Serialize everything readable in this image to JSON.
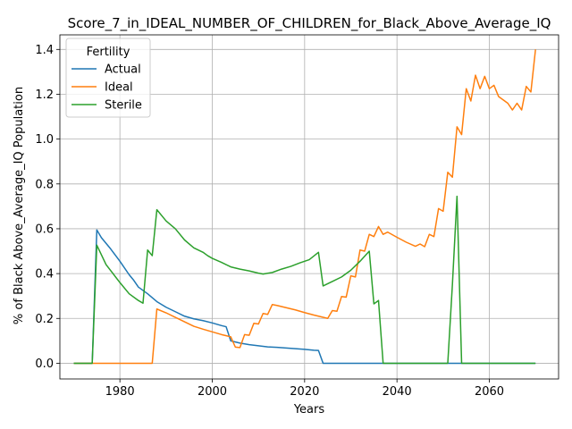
{
  "chart_data": {
    "type": "line",
    "title": "Score_7_in_IDEAL_NUMBER_OF_CHILDREN_for_Black_Above_Average_IQ",
    "xlabel": "Years",
    "ylabel": "% of Black Above_Average_IQ Population",
    "xlim": [
      1967,
      2075
    ],
    "ylim": [
      -0.07,
      1.465
    ],
    "xticks": [
      1980,
      2000,
      2020,
      2040,
      2060
    ],
    "yticks": [
      0.0,
      0.2,
      0.4,
      0.6,
      0.8,
      1.0,
      1.2,
      1.4
    ],
    "grid": true,
    "legend": {
      "title": "Fertility",
      "placement": "top-left",
      "entries": [
        "Actual",
        "Ideal",
        "Sterile"
      ]
    },
    "series": [
      {
        "name": "Actual",
        "color": "#1f77b4",
        "points": [
          [
            1970,
            0.0
          ],
          [
            1974,
            0.0
          ],
          [
            1975,
            0.595
          ],
          [
            1976,
            0.56
          ],
          [
            1978,
            0.51
          ],
          [
            1980,
            0.455
          ],
          [
            1982,
            0.395
          ],
          [
            1983,
            0.37
          ],
          [
            1984,
            0.34
          ],
          [
            1986,
            0.31
          ],
          [
            1988,
            0.275
          ],
          [
            1990,
            0.25
          ],
          [
            1992,
            0.23
          ],
          [
            1994,
            0.21
          ],
          [
            1996,
            0.198
          ],
          [
            1998,
            0.19
          ],
          [
            2000,
            0.18
          ],
          [
            2002,
            0.168
          ],
          [
            2003,
            0.163
          ],
          [
            2004,
            0.1
          ],
          [
            2006,
            0.09
          ],
          [
            2008,
            0.083
          ],
          [
            2010,
            0.078
          ],
          [
            2012,
            0.073
          ],
          [
            2014,
            0.071
          ],
          [
            2016,
            0.068
          ],
          [
            2018,
            0.065
          ],
          [
            2020,
            0.062
          ],
          [
            2022,
            0.058
          ],
          [
            2023,
            0.057
          ],
          [
            2024,
            0.0
          ],
          [
            2070,
            0.0
          ]
        ]
      },
      {
        "name": "Ideal",
        "color": "#ff7f0e",
        "points": [
          [
            1970,
            0.0
          ],
          [
            1987,
            0.0
          ],
          [
            1988,
            0.242
          ],
          [
            1990,
            0.225
          ],
          [
            1992,
            0.205
          ],
          [
            1994,
            0.185
          ],
          [
            1996,
            0.165
          ],
          [
            1998,
            0.152
          ],
          [
            2000,
            0.14
          ],
          [
            2002,
            0.128
          ],
          [
            2004,
            0.118
          ],
          [
            2005,
            0.072
          ],
          [
            2006,
            0.07
          ],
          [
            2007,
            0.128
          ],
          [
            2008,
            0.125
          ],
          [
            2009,
            0.178
          ],
          [
            2010,
            0.175
          ],
          [
            2011,
            0.222
          ],
          [
            2012,
            0.218
          ],
          [
            2013,
            0.262
          ],
          [
            2014,
            0.258
          ],
          [
            2016,
            0.248
          ],
          [
            2018,
            0.238
          ],
          [
            2020,
            0.226
          ],
          [
            2022,
            0.215
          ],
          [
            2024,
            0.205
          ],
          [
            2025,
            0.2
          ],
          [
            2026,
            0.235
          ],
          [
            2027,
            0.232
          ],
          [
            2028,
            0.298
          ],
          [
            2029,
            0.295
          ],
          [
            2030,
            0.39
          ],
          [
            2031,
            0.385
          ],
          [
            2032,
            0.505
          ],
          [
            2033,
            0.5
          ],
          [
            2034,
            0.575
          ],
          [
            2035,
            0.565
          ],
          [
            2036,
            0.61
          ],
          [
            2037,
            0.575
          ],
          [
            2038,
            0.585
          ],
          [
            2040,
            0.562
          ],
          [
            2042,
            0.54
          ],
          [
            2044,
            0.522
          ],
          [
            2045,
            0.532
          ],
          [
            2046,
            0.52
          ],
          [
            2047,
            0.575
          ],
          [
            2048,
            0.565
          ],
          [
            2049,
            0.69
          ],
          [
            2050,
            0.678
          ],
          [
            2051,
            0.852
          ],
          [
            2052,
            0.83
          ],
          [
            2053,
            1.055
          ],
          [
            2054,
            1.02
          ],
          [
            2055,
            1.225
          ],
          [
            2056,
            1.17
          ],
          [
            2057,
            1.285
          ],
          [
            2058,
            1.225
          ],
          [
            2059,
            1.28
          ],
          [
            2060,
            1.225
          ],
          [
            2061,
            1.24
          ],
          [
            2062,
            1.19
          ],
          [
            2064,
            1.16
          ],
          [
            2065,
            1.13
          ],
          [
            2066,
            1.16
          ],
          [
            2067,
            1.13
          ],
          [
            2068,
            1.235
          ],
          [
            2069,
            1.21
          ],
          [
            2070,
            1.4
          ]
        ]
      },
      {
        "name": "Sterile",
        "color": "#2ca02c",
        "points": [
          [
            1970,
            0.0
          ],
          [
            1974,
            0.0
          ],
          [
            1975,
            0.527
          ],
          [
            1977,
            0.44
          ],
          [
            1980,
            0.36
          ],
          [
            1982,
            0.31
          ],
          [
            1984,
            0.28
          ],
          [
            1985,
            0.268
          ],
          [
            1986,
            0.505
          ],
          [
            1987,
            0.48
          ],
          [
            1988,
            0.685
          ],
          [
            1990,
            0.635
          ],
          [
            1992,
            0.6
          ],
          [
            1994,
            0.55
          ],
          [
            1996,
            0.515
          ],
          [
            1998,
            0.495
          ],
          [
            1999,
            0.48
          ],
          [
            2000,
            0.468
          ],
          [
            2002,
            0.45
          ],
          [
            2004,
            0.43
          ],
          [
            2006,
            0.42
          ],
          [
            2008,
            0.412
          ],
          [
            2010,
            0.402
          ],
          [
            2011,
            0.398
          ],
          [
            2013,
            0.405
          ],
          [
            2015,
            0.42
          ],
          [
            2017,
            0.432
          ],
          [
            2019,
            0.448
          ],
          [
            2021,
            0.462
          ],
          [
            2023,
            0.495
          ],
          [
            2024,
            0.345
          ],
          [
            2026,
            0.365
          ],
          [
            2028,
            0.385
          ],
          [
            2030,
            0.415
          ],
          [
            2032,
            0.455
          ],
          [
            2034,
            0.5
          ],
          [
            2035,
            0.265
          ],
          [
            2036,
            0.28
          ],
          [
            2037,
            0.0
          ],
          [
            2051,
            0.0
          ],
          [
            2052,
            0.35
          ],
          [
            2053,
            0.745
          ],
          [
            2054,
            0.0
          ],
          [
            2070,
            0.0
          ]
        ]
      }
    ]
  }
}
